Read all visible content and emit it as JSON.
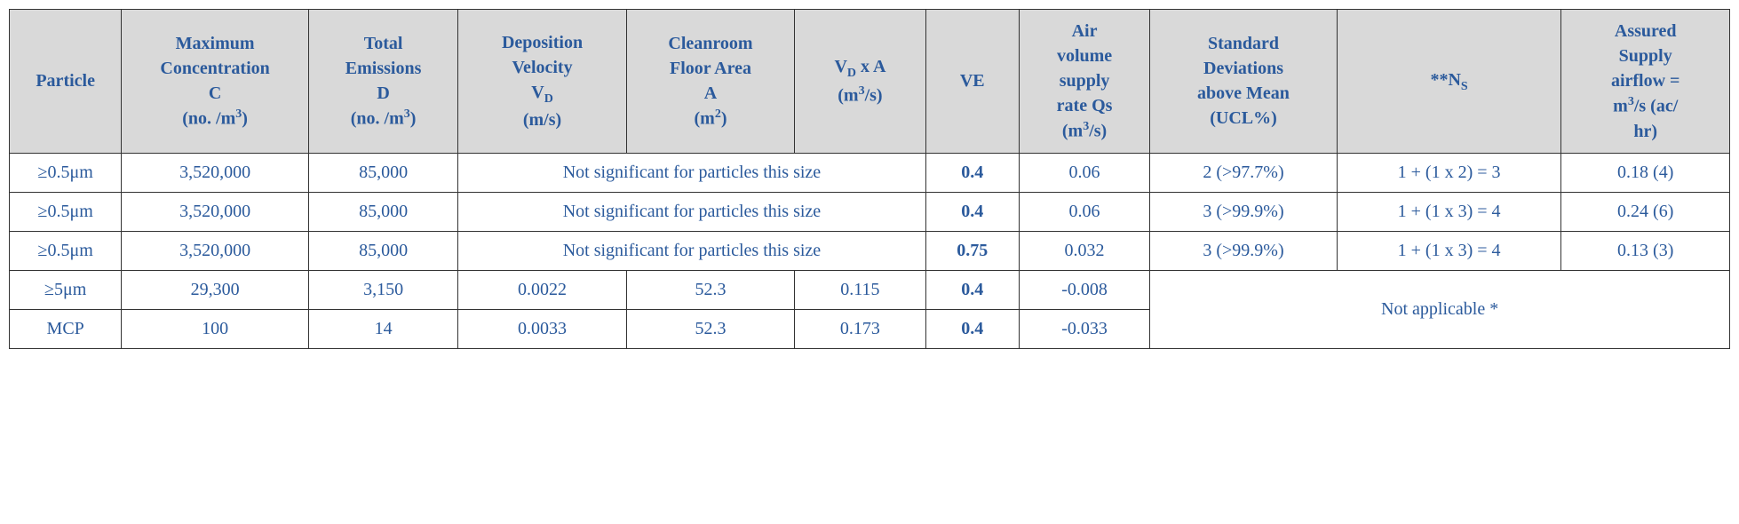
{
  "table": {
    "columns": [
      {
        "key": "particle",
        "html": "Particle"
      },
      {
        "key": "maxconc",
        "html": "Maximum<br>Concentration<br>C<br>(no. /m<sup>3</sup>)"
      },
      {
        "key": "emissions",
        "html": "Total<br>Emissions<br>D<br>(no. /m<sup>3</sup>)"
      },
      {
        "key": "depvel",
        "html": "Deposition<br>Velocity<br>V<sub>D</sub><br>(m/s)"
      },
      {
        "key": "floor",
        "html": "Cleanroom<br>Floor Area<br>A<br>(m<sup>2</sup>)"
      },
      {
        "key": "vda",
        "html": "V<sub>D</sub> x A<br>(m<sup>3</sup>/s)"
      },
      {
        "key": "ve",
        "html": "VE"
      },
      {
        "key": "airvol",
        "html": "Air<br>volume<br>supply<br>rate Qs<br>(m<sup>3</sup>/s)"
      },
      {
        "key": "stddev",
        "html": "Standard<br>Deviations<br>above Mean<br>(UCL%)"
      },
      {
        "key": "ns",
        "html": "**N<sub>S</sub>"
      },
      {
        "key": "assured",
        "html": "Assured<br>Supply<br>airflow =<br>m<sup>3</sup>/s (ac/<br>hr)"
      }
    ],
    "rows": [
      [
        {
          "text": "≥0.5μm"
        },
        {
          "text": "3,520,000"
        },
        {
          "text": "85,000"
        },
        {
          "text": "Not significant for particles this size",
          "colspan": 3
        },
        {
          "text": "0.4",
          "bold": true
        },
        {
          "text": "0.06"
        },
        {
          "text": "2 (>97.7%)"
        },
        {
          "text": "1 + (1 x 2) = 3"
        },
        {
          "text": "0.18 (4)"
        }
      ],
      [
        {
          "text": "≥0.5μm"
        },
        {
          "text": "3,520,000"
        },
        {
          "text": "85,000"
        },
        {
          "text": "Not significant for particles this size",
          "colspan": 3
        },
        {
          "text": "0.4",
          "bold": true
        },
        {
          "text": "0.06"
        },
        {
          "text": "3 (>99.9%)"
        },
        {
          "text": "1 + (1 x 3) = 4"
        },
        {
          "text": "0.24 (6)"
        }
      ],
      [
        {
          "text": "≥0.5μm"
        },
        {
          "text": "3,520,000"
        },
        {
          "text": "85,000"
        },
        {
          "text": "Not significant for particles this size",
          "colspan": 3
        },
        {
          "text": "0.75",
          "bold": true
        },
        {
          "text": "0.032"
        },
        {
          "text": "3 (>99.9%)"
        },
        {
          "text": "1 + (1 x 3) = 4"
        },
        {
          "text": "0.13 (3)"
        }
      ],
      [
        {
          "text": "≥5μm"
        },
        {
          "text": "29,300"
        },
        {
          "text": "3,150"
        },
        {
          "text": "0.0022"
        },
        {
          "text": "52.3"
        },
        {
          "text": "0.115"
        },
        {
          "text": "0.4",
          "bold": true
        },
        {
          "text": "-0.008"
        },
        {
          "text": "Not applicable *",
          "colspan": 3,
          "rowspan": 2
        }
      ],
      [
        {
          "text": "MCP"
        },
        {
          "text": "100"
        },
        {
          "text": "14"
        },
        {
          "text": "0.0033"
        },
        {
          "text": "52.3"
        },
        {
          "text": "0.173"
        },
        {
          "text": "0.4",
          "bold": true
        },
        {
          "text": "-0.033"
        }
      ]
    ],
    "colors": {
      "header_bg": "#d9d9d9",
      "text": "#2b5a9c",
      "border": "#333333",
      "background": "#ffffff"
    },
    "font_family": "Georgia, Times New Roman, serif",
    "header_fontsize": 20,
    "cell_fontsize": 20
  }
}
